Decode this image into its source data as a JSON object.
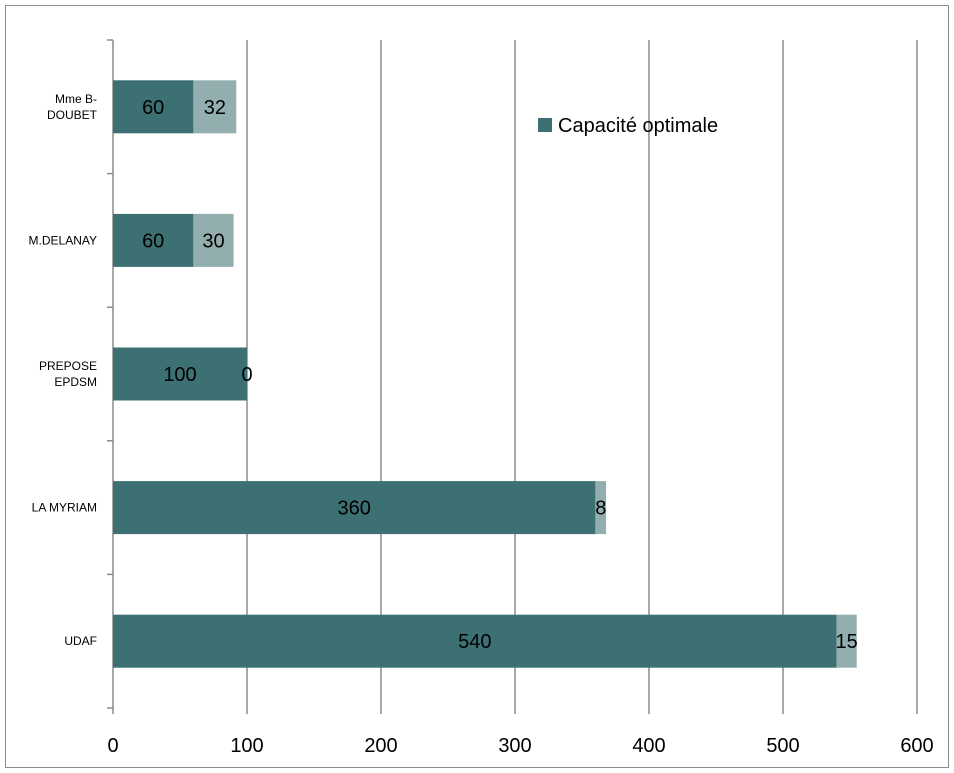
{
  "chart_data": {
    "type": "bar",
    "orientation": "horizontal",
    "stacked": true,
    "categories": [
      "Mme B-DOUBET",
      "M.DELANAY",
      "PREPOSE EPDSM",
      "LA MYRIAM",
      "UDAF"
    ],
    "category_label_lines": [
      [
        "Mme B-",
        "DOUBET"
      ],
      [
        "M.DELANAY"
      ],
      [
        "PREPOSE",
        "EPDSM"
      ],
      [
        "LA MYRIAM"
      ],
      [
        "UDAF"
      ]
    ],
    "series": [
      {
        "name": "Capacité optimale",
        "values": [
          60,
          60,
          100,
          360,
          540
        ],
        "color": "#3c7073"
      },
      {
        "values": [
          32,
          30,
          0,
          8,
          15
        ],
        "color": "#93aeae"
      }
    ],
    "xlim": [
      0,
      600
    ],
    "xticks": [
      0,
      100,
      200,
      300,
      400,
      500,
      600
    ],
    "grid": true,
    "legend": {
      "position": "top-right",
      "entries": [
        "Capacité optimale"
      ]
    },
    "title": "",
    "xlabel": "",
    "ylabel": ""
  }
}
